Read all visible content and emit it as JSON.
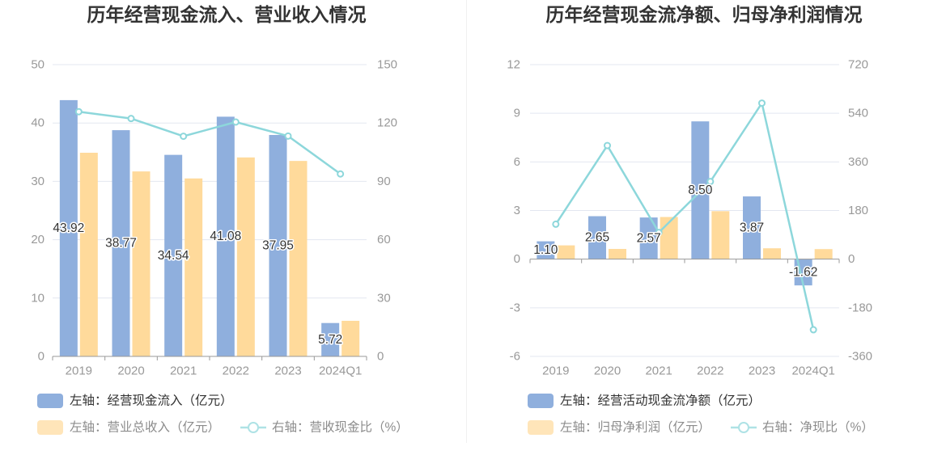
{
  "chart_data": [
    {
      "type": "bar",
      "title": "历年经营现金流入、营业收入情况",
      "categories": [
        "2019",
        "2020",
        "2021",
        "2022",
        "2023",
        "2024Q1"
      ],
      "y_left": {
        "min": 0,
        "max": 50,
        "ticks": [
          0,
          10,
          20,
          30,
          40,
          50
        ]
      },
      "y_right": {
        "min": 0,
        "max": 150,
        "ticks": [
          0,
          30,
          60,
          90,
          120,
          150
        ]
      },
      "series": [
        {
          "name": "左轴：经营现金流入（亿元）",
          "type": "bar",
          "axis": "left",
          "color": "#8fafdd",
          "values": [
            43.92,
            38.77,
            34.54,
            41.08,
            37.95,
            5.72
          ],
          "data_labels": [
            "43.92",
            "38.77",
            "34.54",
            "41.08",
            "37.95",
            "5.72"
          ]
        },
        {
          "name": "左轴：营业总收入（亿元）",
          "type": "bar",
          "axis": "left",
          "color": "#ffda9b",
          "values": [
            34.9,
            31.7,
            30.5,
            34.1,
            33.5,
            6.1
          ]
        },
        {
          "name": "右轴：营收现金比（%）",
          "type": "line",
          "axis": "right",
          "color": "#8dd7db",
          "values": [
            125.8,
            122.3,
            113.2,
            120.5,
            113.3,
            93.8
          ]
        }
      ],
      "grid": true,
      "legend": "bottom-left"
    },
    {
      "type": "bar",
      "title": "历年经营现金流净额、归母净利润情况",
      "categories": [
        "2019",
        "2020",
        "2021",
        "2022",
        "2023",
        "2024Q1"
      ],
      "y_left": {
        "min": -6,
        "max": 12,
        "ticks": [
          -6,
          -3,
          0,
          3,
          6,
          9,
          12
        ]
      },
      "y_right": {
        "min": -360,
        "max": 720,
        "ticks": [
          -360,
          -180,
          0,
          180,
          360,
          540,
          720
        ]
      },
      "series": [
        {
          "name": "左轴：经营活动现金流净额（亿元）",
          "type": "bar",
          "axis": "left",
          "color": "#8fafdd",
          "values": [
            1.1,
            2.65,
            2.57,
            8.5,
            3.87,
            -1.62
          ],
          "data_labels": [
            "1.10",
            "2.65",
            "2.57",
            "8.50",
            "3.87",
            "-1.62"
          ]
        },
        {
          "name": "左轴：归母净利润（亿元）",
          "type": "bar",
          "axis": "left",
          "color": "#ffda9b",
          "values": [
            0.85,
            0.63,
            2.6,
            2.96,
            0.67,
            0.62
          ]
        },
        {
          "name": "右轴：净现比（%）",
          "type": "line",
          "axis": "right",
          "color": "#8dd7db",
          "values": [
            129.4,
            420.6,
            98.8,
            287.2,
            577.6,
            -261.3
          ]
        }
      ],
      "grid": true,
      "legend": "bottom-left"
    }
  ]
}
